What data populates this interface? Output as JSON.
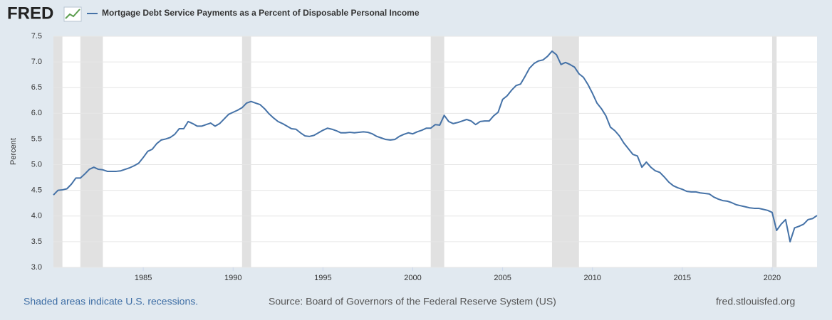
{
  "chart_data": {
    "type": "line",
    "brand": "FRED",
    "title": "Mortgage Debt Service Payments as a Percent of Disposable Personal Income",
    "ylabel": "Percent",
    "footer_left": "Shaded areas indicate U.S. recessions.",
    "source": "Source: Board of Governors of the Federal Reserve System (US)",
    "site": "fred.stlouisfed.org",
    "xlim": [
      1980,
      2022.5
    ],
    "xticks": [
      1985,
      1990,
      1995,
      2000,
      2005,
      2010,
      2015,
      2020
    ],
    "ylim": [
      3,
      7.5
    ],
    "yticks": [
      {
        "value": 3,
        "label": "3.0"
      },
      3.5,
      {
        "value": 4,
        "label": "4.0"
      },
      4.5,
      {
        "value": 5,
        "label": "5.0"
      },
      5.5,
      {
        "value": 6,
        "label": "6.0"
      },
      6.5,
      {
        "value": 7,
        "label": "7.0"
      },
      7.5
    ],
    "grid": true,
    "recessions": [
      [
        1980,
        1980.5
      ],
      [
        1981.5,
        1982.75
      ],
      [
        1990.5,
        1991
      ],
      [
        2001,
        2001.75
      ],
      [
        2007.75,
        2009.25
      ],
      [
        2020,
        2020.25
      ]
    ],
    "x": [
      1980,
      1980.25,
      1980.5,
      1980.75,
      1981,
      1981.25,
      1981.5,
      1981.75,
      1982,
      1982.25,
      1982.5,
      1982.75,
      1983,
      1983.25,
      1983.5,
      1983.75,
      1984,
      1984.25,
      1984.5,
      1984.75,
      1985,
      1985.25,
      1985.5,
      1985.75,
      1986,
      1986.25,
      1986.5,
      1986.75,
      1987,
      1987.25,
      1987.5,
      1987.75,
      1988,
      1988.25,
      1988.5,
      1988.75,
      1989,
      1989.25,
      1989.5,
      1989.75,
      1990,
      1990.25,
      1990.5,
      1990.75,
      1991,
      1991.25,
      1991.5,
      1991.75,
      1992,
      1992.25,
      1992.5,
      1992.75,
      1993,
      1993.25,
      1993.5,
      1993.75,
      1994,
      1994.25,
      1994.5,
      1994.75,
      1995,
      1995.25,
      1995.5,
      1995.75,
      1996,
      1996.25,
      1996.5,
      1996.75,
      1997,
      1997.25,
      1997.5,
      1997.75,
      1998,
      1998.25,
      1998.5,
      1998.75,
      1999,
      1999.25,
      1999.5,
      1999.75,
      2000,
      2000.25,
      2000.5,
      2000.75,
      2001,
      2001.25,
      2001.5,
      2001.75,
      2002,
      2002.25,
      2002.5,
      2002.75,
      2003,
      2003.25,
      2003.5,
      2003.75,
      2004,
      2004.25,
      2004.5,
      2004.75,
      2005,
      2005.25,
      2005.5,
      2005.75,
      2006,
      2006.25,
      2006.5,
      2006.75,
      2007,
      2007.25,
      2007.5,
      2007.75,
      2008,
      2008.25,
      2008.5,
      2008.75,
      2009,
      2009.25,
      2009.5,
      2009.75,
      2010,
      2010.25,
      2010.5,
      2010.75,
      2011,
      2011.25,
      2011.5,
      2011.75,
      2012,
      2012.25,
      2012.5,
      2012.75,
      2013,
      2013.25,
      2013.5,
      2013.75,
      2014,
      2014.25,
      2014.5,
      2014.75,
      2015,
      2015.25,
      2015.5,
      2015.75,
      2016,
      2016.25,
      2016.5,
      2016.75,
      2017,
      2017.25,
      2017.5,
      2017.75,
      2018,
      2018.25,
      2018.5,
      2018.75,
      2019,
      2019.25,
      2019.5,
      2019.75,
      2020,
      2020.25,
      2020.5,
      2020.75,
      2021,
      2021.25,
      2021.5,
      2021.75,
      2022,
      2022.25,
      2022.5
    ],
    "series": [
      {
        "name": "Mortgage Debt Service Payments as a Percent of Disposable Personal Income",
        "color": "#4572a7",
        "values": [
          4.41,
          4.5,
          4.51,
          4.53,
          4.62,
          4.74,
          4.74,
          4.82,
          4.91,
          4.95,
          4.91,
          4.9,
          4.87,
          4.87,
          4.87,
          4.88,
          4.91,
          4.94,
          4.98,
          5.03,
          5.14,
          5.26,
          5.3,
          5.41,
          5.48,
          5.5,
          5.53,
          5.59,
          5.7,
          5.7,
          5.84,
          5.8,
          5.75,
          5.75,
          5.78,
          5.81,
          5.75,
          5.8,
          5.89,
          5.98,
          6.02,
          6.06,
          6.11,
          6.2,
          6.23,
          6.2,
          6.17,
          6.09,
          5.99,
          5.91,
          5.84,
          5.8,
          5.75,
          5.7,
          5.69,
          5.62,
          5.56,
          5.55,
          5.57,
          5.62,
          5.67,
          5.71,
          5.69,
          5.66,
          5.62,
          5.62,
          5.63,
          5.62,
          5.63,
          5.64,
          5.63,
          5.6,
          5.55,
          5.52,
          5.49,
          5.48,
          5.49,
          5.55,
          5.59,
          5.62,
          5.6,
          5.64,
          5.67,
          5.71,
          5.71,
          5.78,
          5.77,
          5.96,
          5.84,
          5.8,
          5.82,
          5.85,
          5.88,
          5.85,
          5.78,
          5.84,
          5.85,
          5.85,
          5.95,
          6.02,
          6.27,
          6.34,
          6.45,
          6.54,
          6.57,
          6.72,
          6.88,
          6.97,
          7.02,
          7.04,
          7.11,
          7.21,
          7.14,
          6.95,
          6.99,
          6.95,
          6.9,
          6.77,
          6.7,
          6.56,
          6.39,
          6.2,
          6.09,
          5.95,
          5.73,
          5.66,
          5.56,
          5.42,
          5.31,
          5.2,
          5.17,
          4.95,
          5.05,
          4.95,
          4.88,
          4.85,
          4.76,
          4.66,
          4.59,
          4.55,
          4.52,
          4.48,
          4.47,
          4.47,
          4.45,
          4.44,
          4.43,
          4.37,
          4.33,
          4.3,
          4.29,
          4.26,
          4.22,
          4.2,
          4.18,
          4.16,
          4.15,
          4.15,
          4.13,
          4.11,
          4.07,
          3.72,
          3.84,
          3.93,
          3.5,
          3.77,
          3.8,
          3.84,
          3.93,
          3.95,
          4.01
        ]
      }
    ]
  }
}
